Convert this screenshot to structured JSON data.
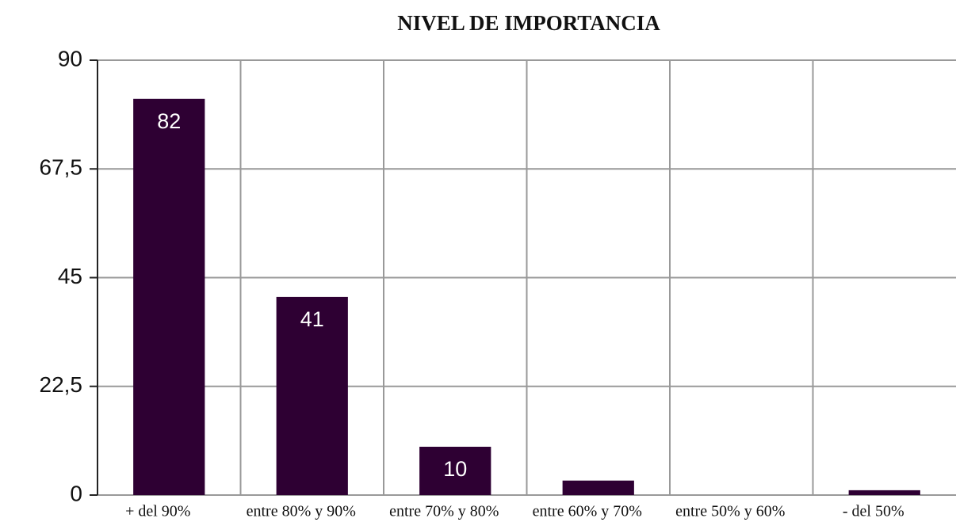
{
  "chart_data": {
    "type": "bar",
    "title": "NIVEL  DE IMPORTANCIA",
    "categories": [
      "+ del 90%",
      "entre 80% y 90%",
      "entre 70% y 80%",
      "entre 60% y 70%",
      "entre 50% y 60%",
      "- del 50%"
    ],
    "values": [
      82,
      41,
      10,
      3,
      0,
      1
    ],
    "color": "#2e0033",
    "ylim": [
      0,
      90
    ],
    "yticks": [
      0,
      {
        "value": 22.5,
        "label": "22,5"
      },
      45,
      {
        "value": 67.5,
        "label": "67,5"
      },
      90
    ],
    "grid": true
  }
}
